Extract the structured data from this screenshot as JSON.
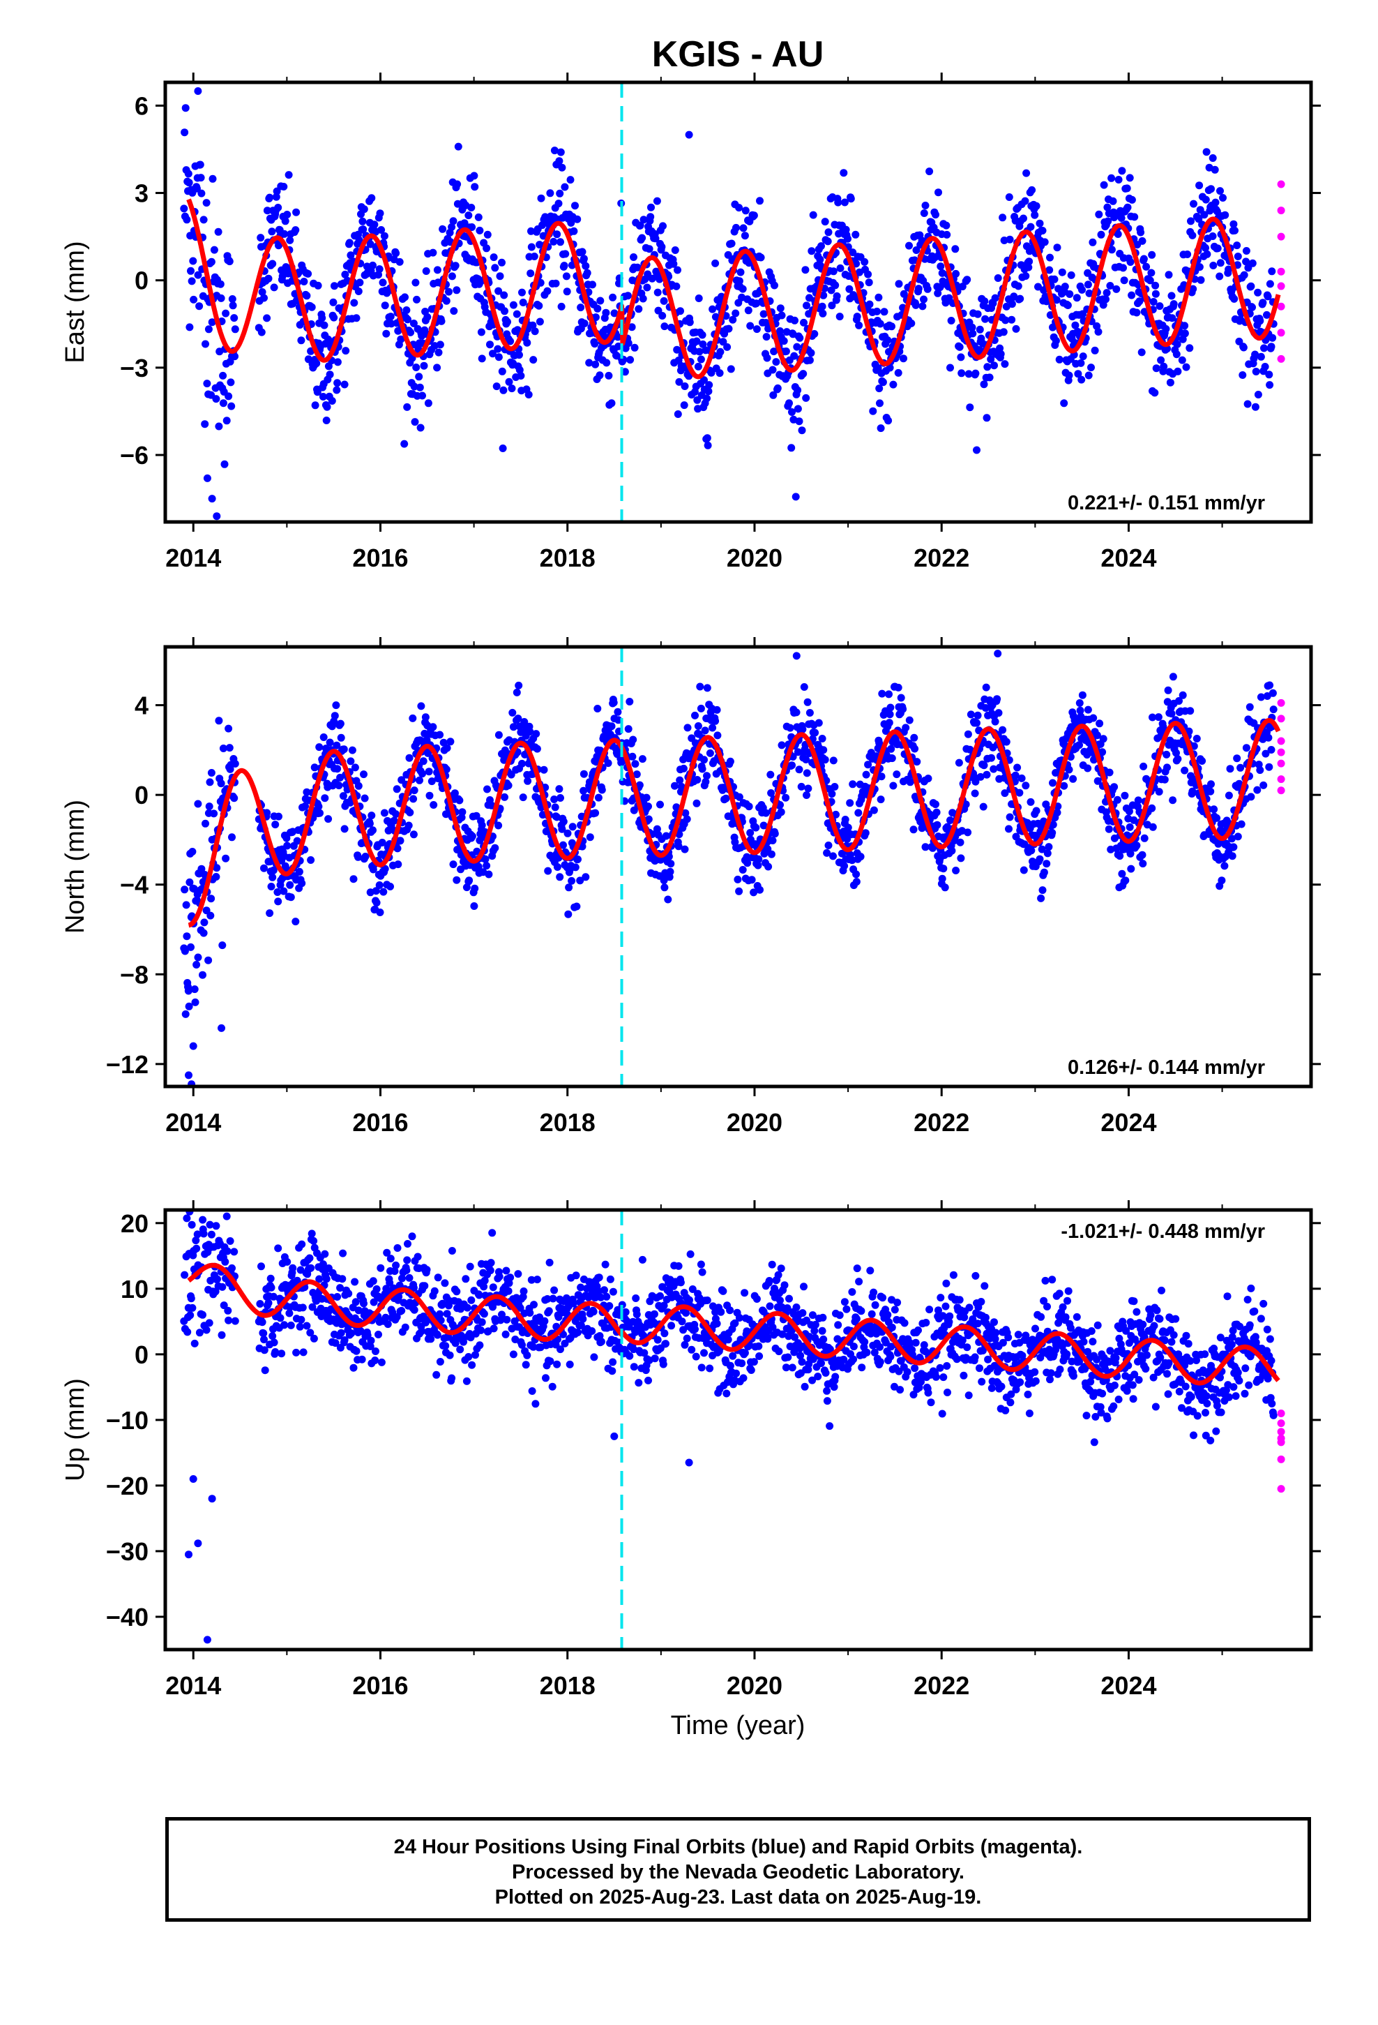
{
  "title": "KGIS - AU",
  "xlabel": "Time (year)",
  "footer": {
    "line1": "24 Hour Positions Using Final Orbits (blue) and Rapid Orbits (magenta).",
    "line2": "Processed by the Nevada Geodetic Laboratory.",
    "line3": "Plotted on 2025-Aug-23. Last data on 2025-Aug-19."
  },
  "colors": {
    "final_orbits": "#0000ff",
    "rapid_orbits": "#ff00ff",
    "model": "#ff0000",
    "event_line": "#00e5ee"
  },
  "chart_data": [
    {
      "type": "scatter",
      "component": "east",
      "ylabel": "East (mm)",
      "xlim": [
        2013.7,
        2025.95
      ],
      "ylim": [
        -8.3,
        6.8
      ],
      "xticks": [
        2014,
        2016,
        2018,
        2020,
        2022,
        2024
      ],
      "yticks": [
        -6,
        -3,
        0,
        3,
        6
      ],
      "rate_text": "0.221+/- 0.151 mm/yr",
      "rate_position": "bottom-right",
      "event_line_x": 2018.58,
      "model": {
        "start": 2013.95,
        "end": 2025.6,
        "offset": 0.1,
        "trend": 0.221,
        "amplitude": 2.1,
        "peak_phase": 0.9,
        "step": {
          "x": 2018.58,
          "before": 0.0,
          "after": -1.4
        },
        "early_adjust": {
          "x": 2013.95,
          "value": 1.8,
          "decay": 0.4
        }
      },
      "final_orbits": {
        "start": 2013.9,
        "end": 2025.55,
        "scatter_sd": 1.1,
        "outliers": [
          [
            2014.05,
            6.5
          ],
          [
            2014.15,
            -6.8
          ],
          [
            2014.2,
            -7.5
          ],
          [
            2014.25,
            -8.1
          ],
          [
            2019.3,
            5.0
          ],
          [
            2024.9,
            4.2
          ]
        ]
      },
      "rapid_orbits": {
        "x": 2025.63,
        "values": [
          3.3,
          2.4,
          1.5,
          0.3,
          -0.2,
          -0.9,
          -1.8,
          -2.7
        ]
      }
    },
    {
      "type": "scatter",
      "component": "north",
      "ylabel": "North (mm)",
      "xlim": [
        2013.7,
        2025.95
      ],
      "ylim": [
        -13,
        6.6
      ],
      "xticks": [
        2014,
        2016,
        2018,
        2020,
        2022,
        2024
      ],
      "yticks": [
        -12,
        -8,
        -4,
        0,
        4
      ],
      "rate_text": "0.126+/- 0.144 mm/yr",
      "rate_position": "bottom-right",
      "event_line_x": 2018.58,
      "model": {
        "start": 2013.95,
        "end": 2025.6,
        "offset": -0.1,
        "trend": 0.126,
        "amplitude": 2.6,
        "peak_phase": 0.5,
        "step": {
          "x": 2018.58,
          "before": 0.0,
          "after": 0.0
        },
        "early_adjust": {
          "x": 2013.95,
          "value": -2.6,
          "decay": 0.5
        }
      },
      "final_orbits": {
        "start": 2013.9,
        "end": 2025.55,
        "scatter_sd": 1.0,
        "outliers": [
          [
            2013.95,
            -12.5
          ],
          [
            2013.98,
            -12.9
          ],
          [
            2014.0,
            -11.2
          ],
          [
            2014.3,
            -10.4
          ],
          [
            2014.05,
            -0.4
          ],
          [
            2022.6,
            6.3
          ],
          [
            2020.45,
            6.2
          ]
        ]
      },
      "rapid_orbits": {
        "x": 2025.63,
        "values": [
          4.1,
          3.4,
          2.4,
          1.9,
          1.4,
          0.7,
          0.2
        ]
      }
    },
    {
      "type": "scatter",
      "component": "up",
      "ylabel": "Up (mm)",
      "xlim": [
        2013.7,
        2025.95
      ],
      "ylim": [
        -45,
        22
      ],
      "xticks": [
        2014,
        2016,
        2018,
        2020,
        2022,
        2024
      ],
      "yticks": [
        -40,
        -30,
        -20,
        -10,
        0,
        10,
        20
      ],
      "rate_text": "-1.021+/- 0.448 mm/yr",
      "rate_position": "top-right",
      "event_line_x": 2018.58,
      "model": {
        "start": 2013.95,
        "end": 2025.6,
        "offset": 4.0,
        "trend": -1.021,
        "amplitude": 3.0,
        "peak_phase": 0.25,
        "step": {
          "x": 2018.58,
          "before": 0.0,
          "after": 0.5
        },
        "early_adjust": {
          "x": 2013.95,
          "value": 3.0,
          "decay": 0.5
        }
      },
      "final_orbits": {
        "start": 2013.9,
        "end": 2025.55,
        "scatter_sd": 3.5,
        "outliers": [
          [
            2014.1,
            20.5
          ],
          [
            2014.15,
            -43.5
          ],
          [
            2013.95,
            -30.5
          ],
          [
            2014.05,
            -28.8
          ],
          [
            2014.0,
            -19
          ],
          [
            2014.2,
            -22
          ],
          [
            2019.3,
            -16.5
          ],
          [
            2018.5,
            -12.5
          ]
        ]
      },
      "rapid_orbits": {
        "x": 2025.63,
        "values": [
          -9.0,
          -10.5,
          -11.8,
          -12.8,
          -13.4,
          -16.0,
          -20.5
        ]
      }
    }
  ]
}
